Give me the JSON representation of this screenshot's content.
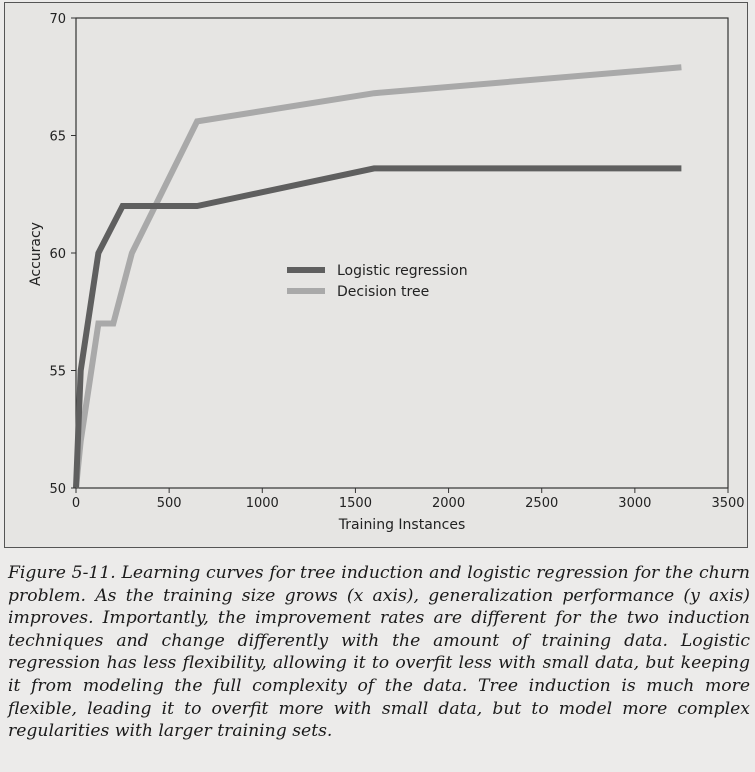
{
  "chart_data": {
    "type": "line",
    "title": "",
    "xlabel": "Training Instances",
    "ylabel": "Accuracy",
    "xlim": [
      0,
      3500
    ],
    "ylim": [
      50,
      70
    ],
    "xticks": [
      "0",
      "500",
      "1000",
      "1500",
      "2000",
      "2500",
      "3000",
      "3500"
    ],
    "yticks": [
      "50",
      "55",
      "60",
      "65",
      "70"
    ],
    "grid": false,
    "legend_position": "center",
    "series": [
      {
        "name": "Logistic regression",
        "color": "#5f5f5f",
        "x": [
          0,
          25,
          120,
          250,
          650,
          1600,
          3250
        ],
        "y": [
          50,
          55,
          60,
          62,
          62,
          63.6,
          63.6
        ]
      },
      {
        "name": "Decision tree",
        "color": "#a9a9a9",
        "x": [
          0,
          25,
          120,
          200,
          300,
          650,
          1600,
          3250
        ],
        "y": [
          50,
          52,
          57,
          57,
          60,
          65.6,
          66.8,
          67.9
        ]
      }
    ]
  },
  "caption": "Figure 5-11. Learning curves for tree induction and logistic regression for the churn problem. As the training size grows (x axis), generalization performance (y axis) improves. Importantly, the improvement rates are different for the two induction techniques and change differently with the amount of training data. Logistic regression has less flexibility, allowing it to overfit less with small data, but keeping it from modeling the full complexity of the data. Tree induction is much more flexible, leading it to overfit more with small data, but to model more complex regularities with larger training sets."
}
